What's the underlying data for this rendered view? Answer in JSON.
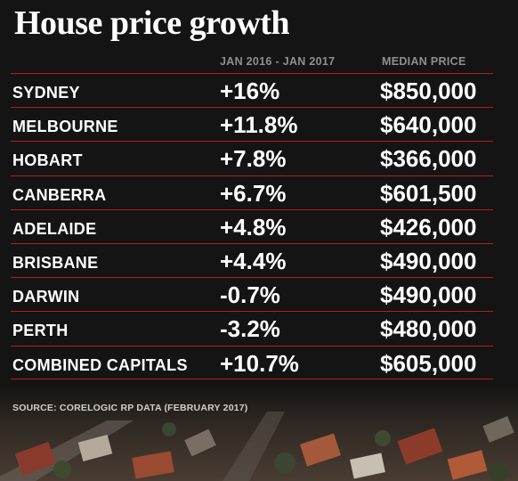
{
  "title": "House price growth",
  "headers": {
    "growth": "JAN 2016 - JAN 2017",
    "price": "MEDIAN PRICE"
  },
  "rows": [
    {
      "city": "SYDNEY",
      "growth": "+16%",
      "price": "$850,000"
    },
    {
      "city": "MELBOURNE",
      "growth": "+11.8%",
      "price": "$640,000"
    },
    {
      "city": "HOBART",
      "growth": "+7.8%",
      "price": "$366,000"
    },
    {
      "city": "CANBERRA",
      "growth": "+6.7%",
      "price": "$601,500"
    },
    {
      "city": "ADELAIDE",
      "growth": "+4.8%",
      "price": "$426,000"
    },
    {
      "city": "BRISBANE",
      "growth": "+4.4%",
      "price": "$490,000"
    },
    {
      "city": "DARWIN",
      "growth": "-0.7%",
      "price": "$490,000"
    },
    {
      "city": "PERTH",
      "growth": "-3.2%",
      "price": "$480,000"
    },
    {
      "city": "COMBINED CAPITALS",
      "growth": "+10.7%",
      "price": "$605,000"
    }
  ],
  "source": "SOURCE: CORELOGIC RP DATA (FEBRUARY 2017)",
  "colors": {
    "background": "#141414",
    "rule": "#b81d1d",
    "header": "#8f8f8f"
  }
}
